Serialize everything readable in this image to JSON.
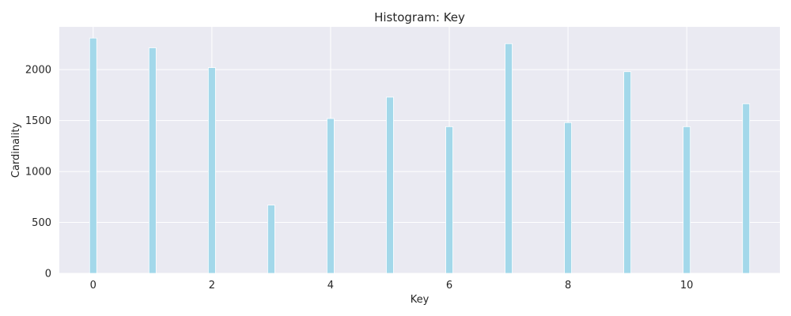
{
  "chart_data": {
    "type": "bar",
    "title": "Histogram: Key",
    "xlabel": "Key",
    "ylabel": "Cardinality",
    "x": [
      0,
      1,
      2,
      3,
      4,
      5,
      6,
      7,
      8,
      9,
      10,
      11
    ],
    "values": [
      2310,
      2215,
      2020,
      670,
      1520,
      1730,
      1440,
      2255,
      1480,
      1980,
      1440,
      1665
    ],
    "xlim": [
      -0.57,
      11.57
    ],
    "ylim": [
      0,
      2420
    ],
    "x_ticks": [
      0,
      2,
      4,
      6,
      8,
      10
    ],
    "y_ticks": [
      0,
      500,
      1000,
      1500,
      2000
    ],
    "grid": true,
    "colors": {
      "bar_fill": "#a3d8ea",
      "bar_edge": "#ffffff",
      "plot_background": "#eaeaf2",
      "grid": "#ffffff"
    }
  }
}
